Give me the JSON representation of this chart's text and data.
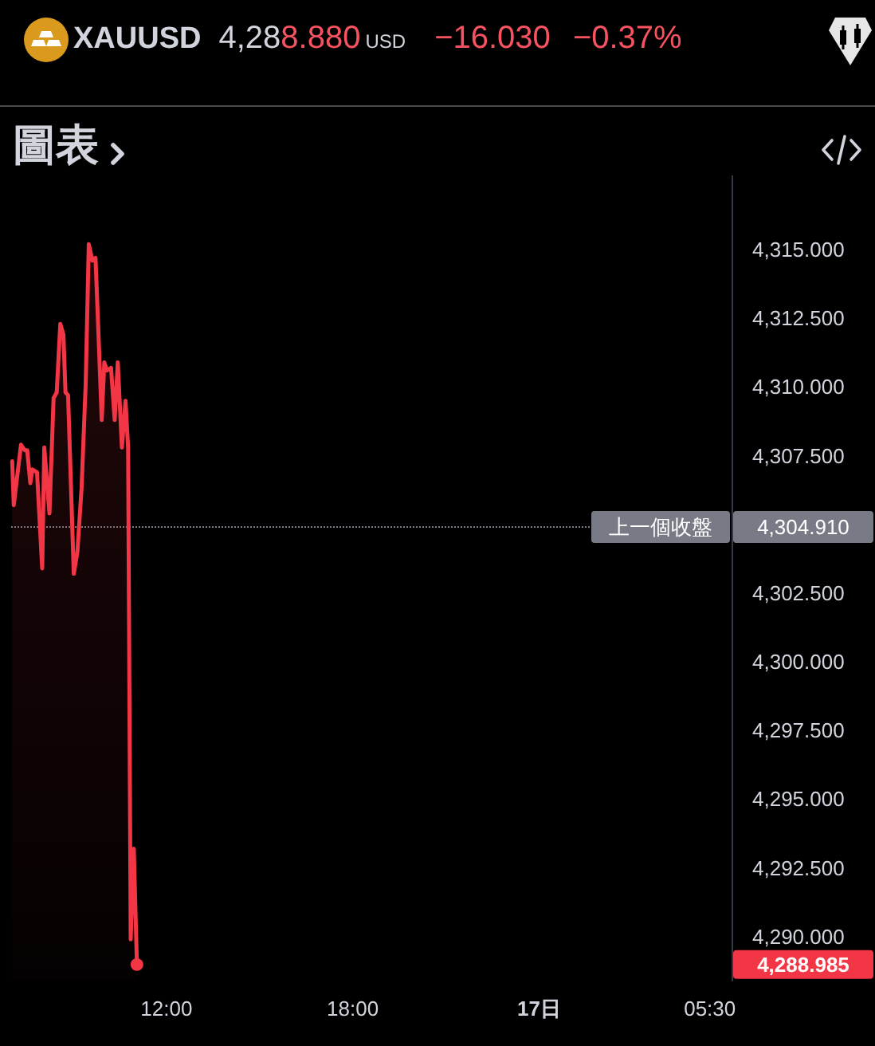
{
  "chart_data": {
    "type": "area",
    "title": "XAUUSD",
    "subtitle": "圖表",
    "annotations": [
      "4,288.880",
      "USD",
      "−16.030",
      "−0.37%",
      {
        "text": "4,304.910",
        "x": "--12-17T06:12",
        "y": 4304.91
      },
      "4,288.985"
    ],
    "x": [
      "--12-16T07:02",
      "--12-16T07:05",
      "--12-16T07:19",
      "--12-16T07:26",
      "--12-16T07:31",
      "--12-16T07:37",
      "--12-16T07:41",
      "--12-16T07:50",
      "--12-16T08:00",
      "--12-16T08:04",
      "--12-16T08:14",
      "--12-16T08:22",
      "--12-16T08:28",
      "--12-16T08:35",
      "--12-16T08:41",
      "--12-16T08:45",
      "--12-16T08:50",
      "--12-16T09:01",
      "--12-16T09:08",
      "--12-16T09:16",
      "--12-16T09:24",
      "--12-16T09:30",
      "--12-16T09:37",
      "--12-16T09:43",
      "--12-16T09:50",
      "--12-16T09:55",
      "--12-16T10:00",
      "--12-16T10:05",
      "--12-16T10:13",
      "--12-16T10:20",
      "--12-16T10:26",
      "--12-16T10:34",
      "--12-16T10:41",
      "--12-16T10:46",
      "--12-16T10:51",
      "--12-16T10:57",
      "--12-16T11:03"
    ],
    "values": [
      4307.3,
      4305.7,
      4307.9,
      4307.7,
      4307.7,
      4306.5,
      4307.0,
      4306.9,
      4303.4,
      4307.8,
      4305.4,
      4309.6,
      4309.8,
      4312.3,
      4311.9,
      4309.8,
      4309.7,
      4303.2,
      4304.0,
      4306.3,
      4310.1,
      4315.2,
      4314.6,
      4314.7,
      4311.3,
      4308.8,
      4310.9,
      4310.6,
      4310.7,
      4308.8,
      4310.9,
      4307.8,
      4309.5,
      4307.8,
      4289.9,
      4293.2,
      4288.985
    ],
    "color": "#f23645",
    "xlim": [
      "--12-16T07:00",
      "--12-17T06:12"
    ],
    "xticks": [
      {
        "value": "--12-16T12:00",
        "label": "12:00"
      },
      {
        "value": "--12-16T18:00",
        "label": "18:00"
      },
      {
        "value": "--12-17T00:00",
        "label": "17日"
      },
      {
        "value": "--12-17T05:30",
        "label": "05:30"
      }
    ],
    "ylim": [
      4288.4,
      4317.7
    ],
    "yticks": [
      {
        "value": 4290,
        "label": "4,290.000"
      },
      {
        "value": 4292.5,
        "label": "4,292.500"
      },
      {
        "value": 4295,
        "label": "4,295.000"
      },
      {
        "value": 4297.5,
        "label": "4,297.500"
      },
      {
        "value": 4300,
        "label": "4,300.000"
      },
      {
        "value": 4302.5,
        "label": "4,302.500"
      },
      {
        "value": 4307.5,
        "label": "4,307.500"
      },
      {
        "value": 4310,
        "label": "4,310.000"
      },
      {
        "value": 4312.5,
        "label": "4,312.500"
      },
      {
        "value": 4315,
        "label": "4,315.000"
      }
    ],
    "ref_lines": [
      {
        "axis": "y",
        "value": 4304.91,
        "label": "上一個收盤",
        "color": "#787b86",
        "line_style": "dotted"
      }
    ]
  }
}
